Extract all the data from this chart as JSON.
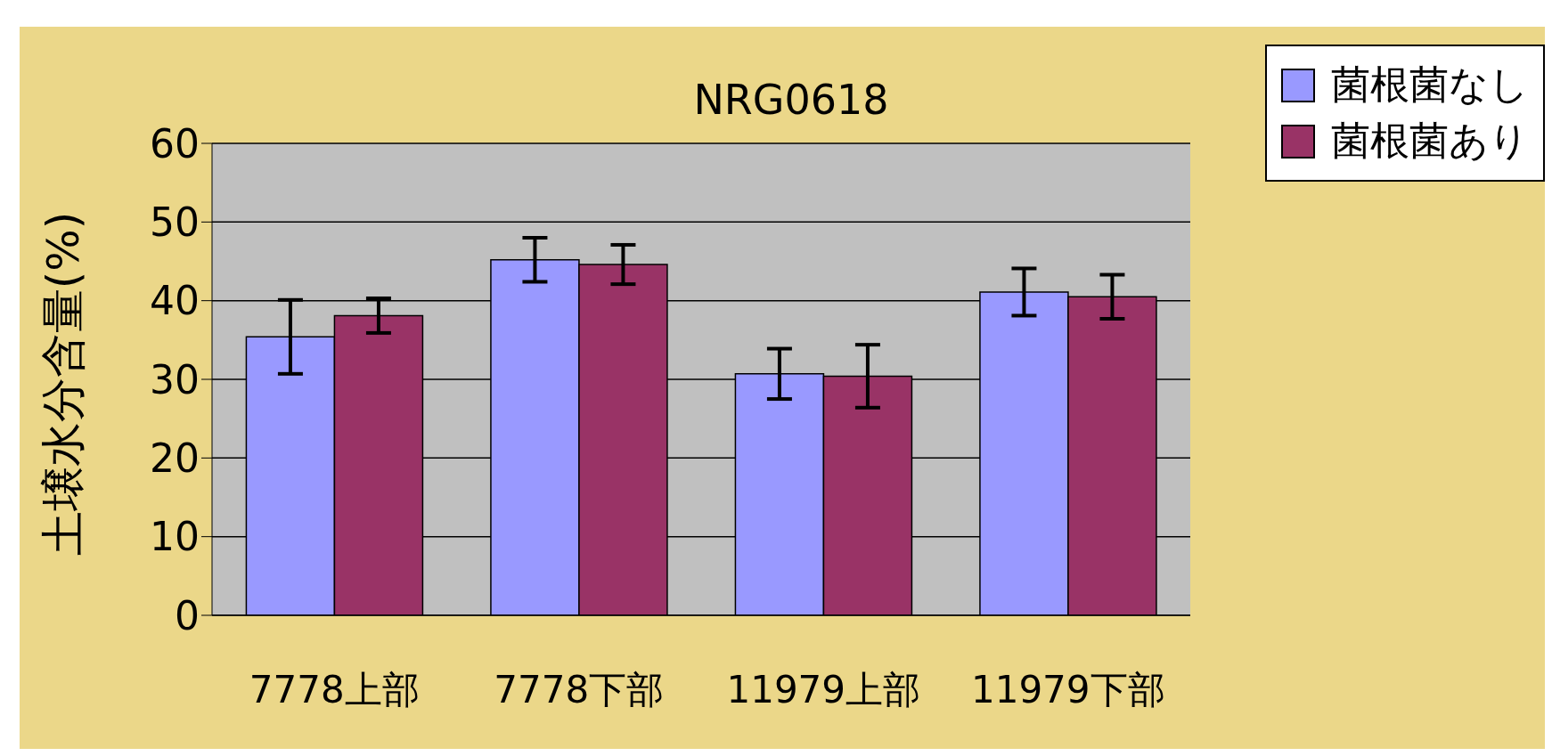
{
  "chart_data": {
    "type": "bar",
    "title": "NRG0618",
    "ylabel": "土壌水分含量(%)",
    "categories": [
      "7778上部",
      "7778下部",
      "11979上部",
      "11979下部"
    ],
    "series": [
      {
        "name": "菌根菌なし",
        "color": "#9999ff",
        "values": [
          35.4,
          45.2,
          30.7,
          41.1
        ],
        "errors": [
          4.7,
          2.8,
          3.2,
          3.0
        ]
      },
      {
        "name": "菌根菌あり",
        "color": "#993366",
        "values": [
          38.1,
          44.6,
          30.4,
          40.5
        ],
        "errors": [
          2.2,
          2.5,
          4.0,
          2.8
        ]
      }
    ],
    "ylim": [
      0,
      60
    ],
    "yticks": [
      0,
      10,
      20,
      30,
      40,
      50,
      60
    ],
    "grid": "y",
    "legend": "top right"
  }
}
